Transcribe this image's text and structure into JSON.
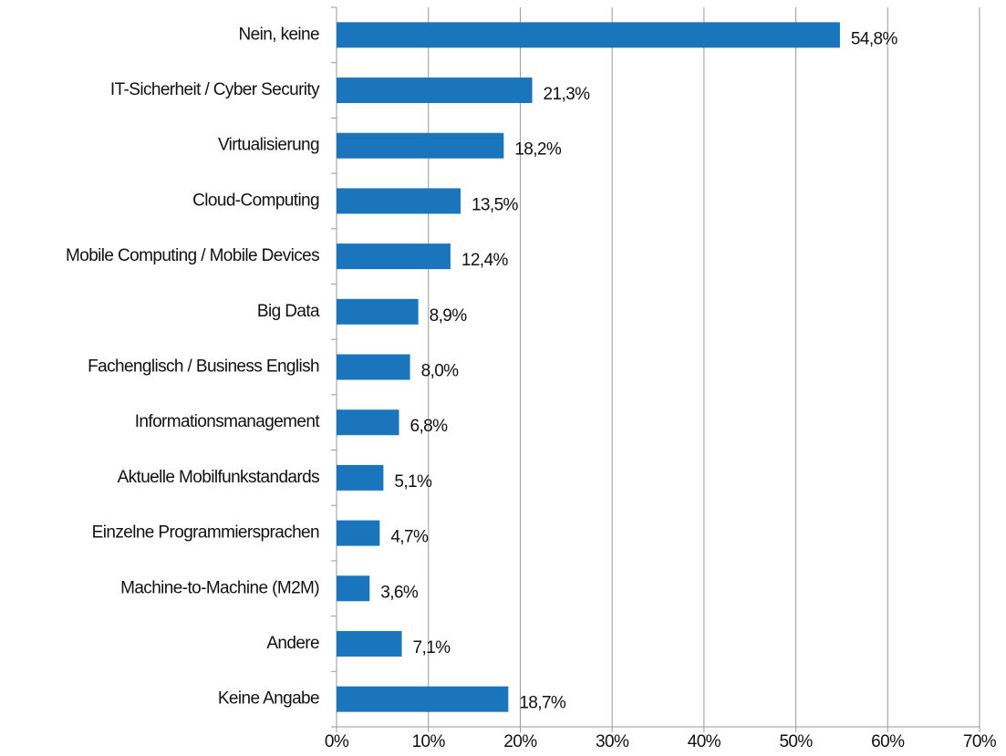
{
  "chart_data": {
    "type": "barh",
    "categories": [
      "Nein, keine",
      "IT-Sicherheit / Cyber Security",
      "Virtualisierung",
      "Cloud-Computing",
      "Mobile Computing / Mobile Devices",
      "Big Data",
      "Fachenglisch / Business English",
      "Informationsmanagement",
      "Aktuelle Mobilfunkstandards",
      "Einzelne Programmiersprachen",
      "Machine-to-Machine (M2M)",
      "Andere",
      "Keine Angabe"
    ],
    "values": [
      54.8,
      21.3,
      18.2,
      13.5,
      12.4,
      8.9,
      8.0,
      6.8,
      5.1,
      4.7,
      3.6,
      7.1,
      18.7
    ],
    "value_labels": [
      "54,8%",
      "21,3%",
      "18,2%",
      "13,5%",
      "12,4%",
      "8,9%",
      "8,0%",
      "6,8%",
      "5,1%",
      "4,7%",
      "3,6%",
      "7,1%",
      "18,7%"
    ],
    "color": "#1a75bc",
    "xlim": [
      0,
      70
    ],
    "xticks": [
      {
        "value": 0,
        "label": "0%"
      },
      {
        "value": 10,
        "label": "10%"
      },
      {
        "value": 20,
        "label": "20%"
      },
      {
        "value": 30,
        "label": "30%"
      },
      {
        "value": 40,
        "label": "40%"
      },
      {
        "value": 50,
        "label": "50%"
      },
      {
        "value": 60,
        "label": "60%"
      },
      {
        "value": 70,
        "label": "70%"
      }
    ],
    "grid": true
  }
}
